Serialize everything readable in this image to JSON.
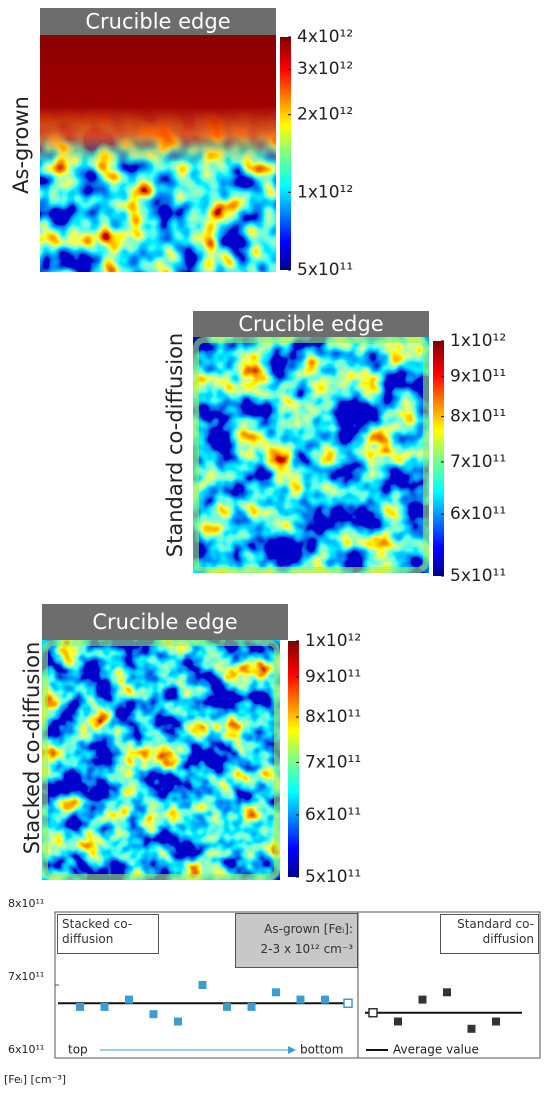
{
  "chart_data": [
    {
      "type": "heatmap",
      "header": "Crucible edge",
      "label": "As-grown",
      "log_scale": true,
      "clim": [
        500000000000,
        4000000000000
      ],
      "cticks": [
        {
          "value": 500000000000,
          "label": "5x10¹¹"
        },
        {
          "value": 1000000000000,
          "label": "1x10¹²"
        },
        {
          "value": 2000000000000,
          "label": "2x10¹²"
        },
        {
          "value": 3000000000000,
          "label": "3x10¹²"
        },
        {
          "value": 4000000000000,
          "label": "4x10¹²"
        }
      ]
    },
    {
      "type": "heatmap",
      "header": "Crucible edge",
      "label": "Standard co-diffusion",
      "log_scale": true,
      "clim": [
        500000000000,
        1000000000000
      ],
      "cticks": [
        {
          "value": 500000000000,
          "label": "5x10¹¹"
        },
        {
          "value": 600000000000,
          "label": "6x10¹¹"
        },
        {
          "value": 700000000000,
          "label": "7x10¹¹"
        },
        {
          "value": 800000000000,
          "label": "8x10¹¹"
        },
        {
          "value": 900000000000,
          "label": "9x10¹¹"
        },
        {
          "value": 1000000000000,
          "label": "1x10¹²"
        }
      ]
    },
    {
      "type": "heatmap",
      "header": "Crucible edge",
      "label": "Stacked co-diffusion",
      "log_scale": true,
      "clim": [
        500000000000,
        1000000000000
      ],
      "cticks": [
        {
          "value": 500000000000,
          "label": "5x10¹¹"
        },
        {
          "value": 600000000000,
          "label": "6x10¹¹"
        },
        {
          "value": 700000000000,
          "label": "7x10¹¹"
        },
        {
          "value": 800000000000,
          "label": "8x10¹¹"
        },
        {
          "value": 900000000000,
          "label": "9x10¹¹"
        },
        {
          "value": 1000000000000,
          "label": "1x10¹²"
        }
      ]
    },
    {
      "type": "scatter",
      "y_label": "[Feᵢ] [cm⁻³]",
      "ylim": [
        600000000000,
        800000000000
      ],
      "yticks": [
        {
          "value": 600000000000,
          "label": "6x10¹¹"
        },
        {
          "value": 700000000000,
          "label": "7x10¹¹"
        },
        {
          "value": 800000000000,
          "label": "8x10¹¹"
        }
      ],
      "series": [
        {
          "name": "Stacked co-diffusion",
          "color": "#3a9fd0",
          "values": [
            670000000000,
            670000000000,
            680000000000,
            660000000000,
            650000000000,
            700000000000,
            670000000000,
            670000000000,
            690000000000,
            680000000000,
            680000000000
          ],
          "average": 675000000000
        },
        {
          "name": "Standard co-diffusion",
          "color": "#333333",
          "values": [
            650000000000,
            680000000000,
            690000000000,
            640000000000,
            650000000000
          ],
          "average": 662000000000
        }
      ],
      "annotation": [
        "As-grown [Feᵢ]:",
        "2-3 x 10¹² cm⁻³"
      ],
      "direction": [
        "top",
        "bottom"
      ],
      "legend": "Average value"
    }
  ]
}
